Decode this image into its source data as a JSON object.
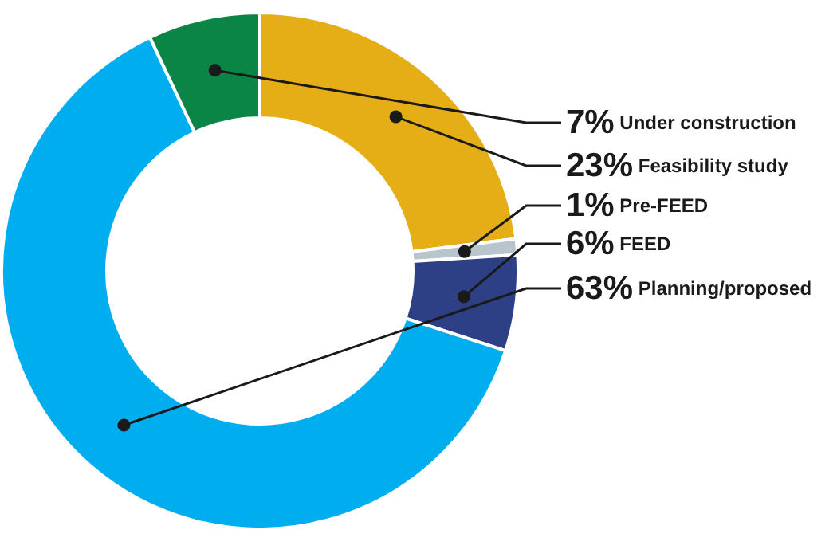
{
  "chart_data": {
    "type": "donut",
    "categories": [
      "Feasibility study",
      "Pre-FEED",
      "FEED",
      "Planning/proposed",
      "Under construction"
    ],
    "values": [
      23,
      1,
      6,
      63,
      7
    ],
    "colors": [
      "#e5ae17",
      "#b9c5cd",
      "#2d3f85",
      "#00aeef",
      "#0b8545"
    ],
    "value_labels": [
      "23%",
      "1%",
      "6%",
      "63%",
      "7%"
    ],
    "legend": false
  }
}
